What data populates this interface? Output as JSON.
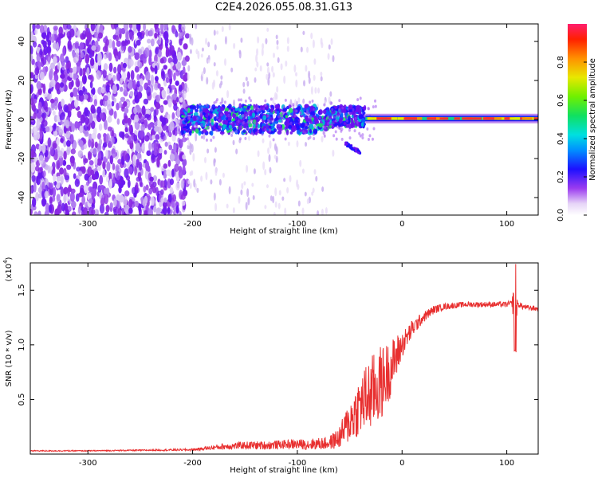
{
  "title": "C2E4.2026.055.08.31.G13",
  "colors": {
    "spec_low": "#8a2be2",
    "spec_mid": "#1020ff",
    "spec_hot": "#20e060",
    "snr_line": "#e83030"
  },
  "chart_data": [
    {
      "type": "heatmap",
      "title": "C2E4.2026.055.08.31.G13",
      "xlabel": "Height of straight line (km)",
      "ylabel": "Frequency (Hz)",
      "xlim": [
        -355,
        130
      ],
      "ylim": [
        -49,
        49
      ],
      "xticks": [
        -300,
        -200,
        -100,
        0,
        100
      ],
      "yticks": [
        -40,
        -20,
        0,
        20,
        40
      ],
      "xtick_labels": [
        "-300",
        "-200",
        "-100",
        "0",
        "100"
      ],
      "ytick_labels": [
        "-40",
        "-20",
        "0",
        "20",
        "40"
      ],
      "colorbar": {
        "label": "Normalized spectral amplitude",
        "range": [
          0,
          1
        ],
        "ticks": [
          0.0,
          0.2,
          0.4,
          0.6,
          0.8
        ],
        "tick_labels": [
          "0.0",
          "0.2",
          "0.4",
          "0.6",
          "0.8"
        ]
      },
      "regions": [
        {
          "name": "broadband noise",
          "x": [
            -355,
            -205
          ],
          "freq": [
            -49,
            49
          ],
          "amplitude": 0.15
        },
        {
          "name": "sparse noise",
          "x": [
            -205,
            -70
          ],
          "freq": [
            -49,
            49
          ],
          "amplitude": 0.05
        },
        {
          "name": "signal band",
          "x": [
            -205,
            -35
          ],
          "freq": [
            -6,
            6
          ],
          "amplitude": 0.4
        },
        {
          "name": "signal side lobe",
          "x": [
            -55,
            -40
          ],
          "freq": [
            -17,
            -11
          ],
          "amplitude": 0.2
        },
        {
          "name": "stable carrier",
          "x": [
            -35,
            130
          ],
          "freq": [
            -1,
            2
          ],
          "amplitude": 0.9
        }
      ]
    },
    {
      "type": "line",
      "xlabel": "Height of straight line (km)",
      "ylabel": "SNR (10 * v/v)",
      "yscale_label": "(x10",
      "yscale_exp": "4",
      "yscale_close": ")",
      "xlim": [
        -355,
        130
      ],
      "ylim": [
        0,
        1.75
      ],
      "xticks": [
        -300,
        -200,
        -100,
        0,
        100
      ],
      "yticks": [
        0.5,
        1.0,
        1.5
      ],
      "xtick_labels": [
        "-300",
        "-200",
        "-100",
        "0",
        "100"
      ],
      "ytick_labels": [
        "0.5",
        "1.0",
        "1.5"
      ],
      "series": [
        {
          "name": "SNR",
          "x": [
            -355,
            -300,
            -250,
            -200,
            -190,
            -170,
            -150,
            -130,
            -110,
            -90,
            -70,
            -60,
            -50,
            -40,
            -30,
            -25,
            -20,
            -15,
            -10,
            -5,
            0,
            10,
            20,
            30,
            40,
            60,
            80,
            100,
            105,
            108,
            110,
            112,
            115,
            120,
            130
          ],
          "y": [
            0.03,
            0.03,
            0.035,
            0.04,
            0.05,
            0.07,
            0.08,
            0.08,
            0.09,
            0.09,
            0.1,
            0.15,
            0.3,
            0.45,
            0.55,
            0.6,
            0.65,
            0.72,
            0.8,
            0.9,
            1.0,
            1.15,
            1.25,
            1.32,
            1.35,
            1.37,
            1.37,
            1.37,
            1.38,
            1.4,
            1.36,
            1.37,
            1.35,
            1.34,
            1.33
          ],
          "noise": [
            0.005,
            0.005,
            0.006,
            0.01,
            0.015,
            0.03,
            0.035,
            0.04,
            0.04,
            0.05,
            0.06,
            0.1,
            0.2,
            0.28,
            0.35,
            0.35,
            0.35,
            0.3,
            0.25,
            0.2,
            0.12,
            0.08,
            0.05,
            0.04,
            0.03,
            0.025,
            0.025,
            0.025,
            0.03,
            0.35,
            0.04,
            0.03,
            0.025,
            0.025,
            0.025
          ]
        }
      ]
    }
  ]
}
